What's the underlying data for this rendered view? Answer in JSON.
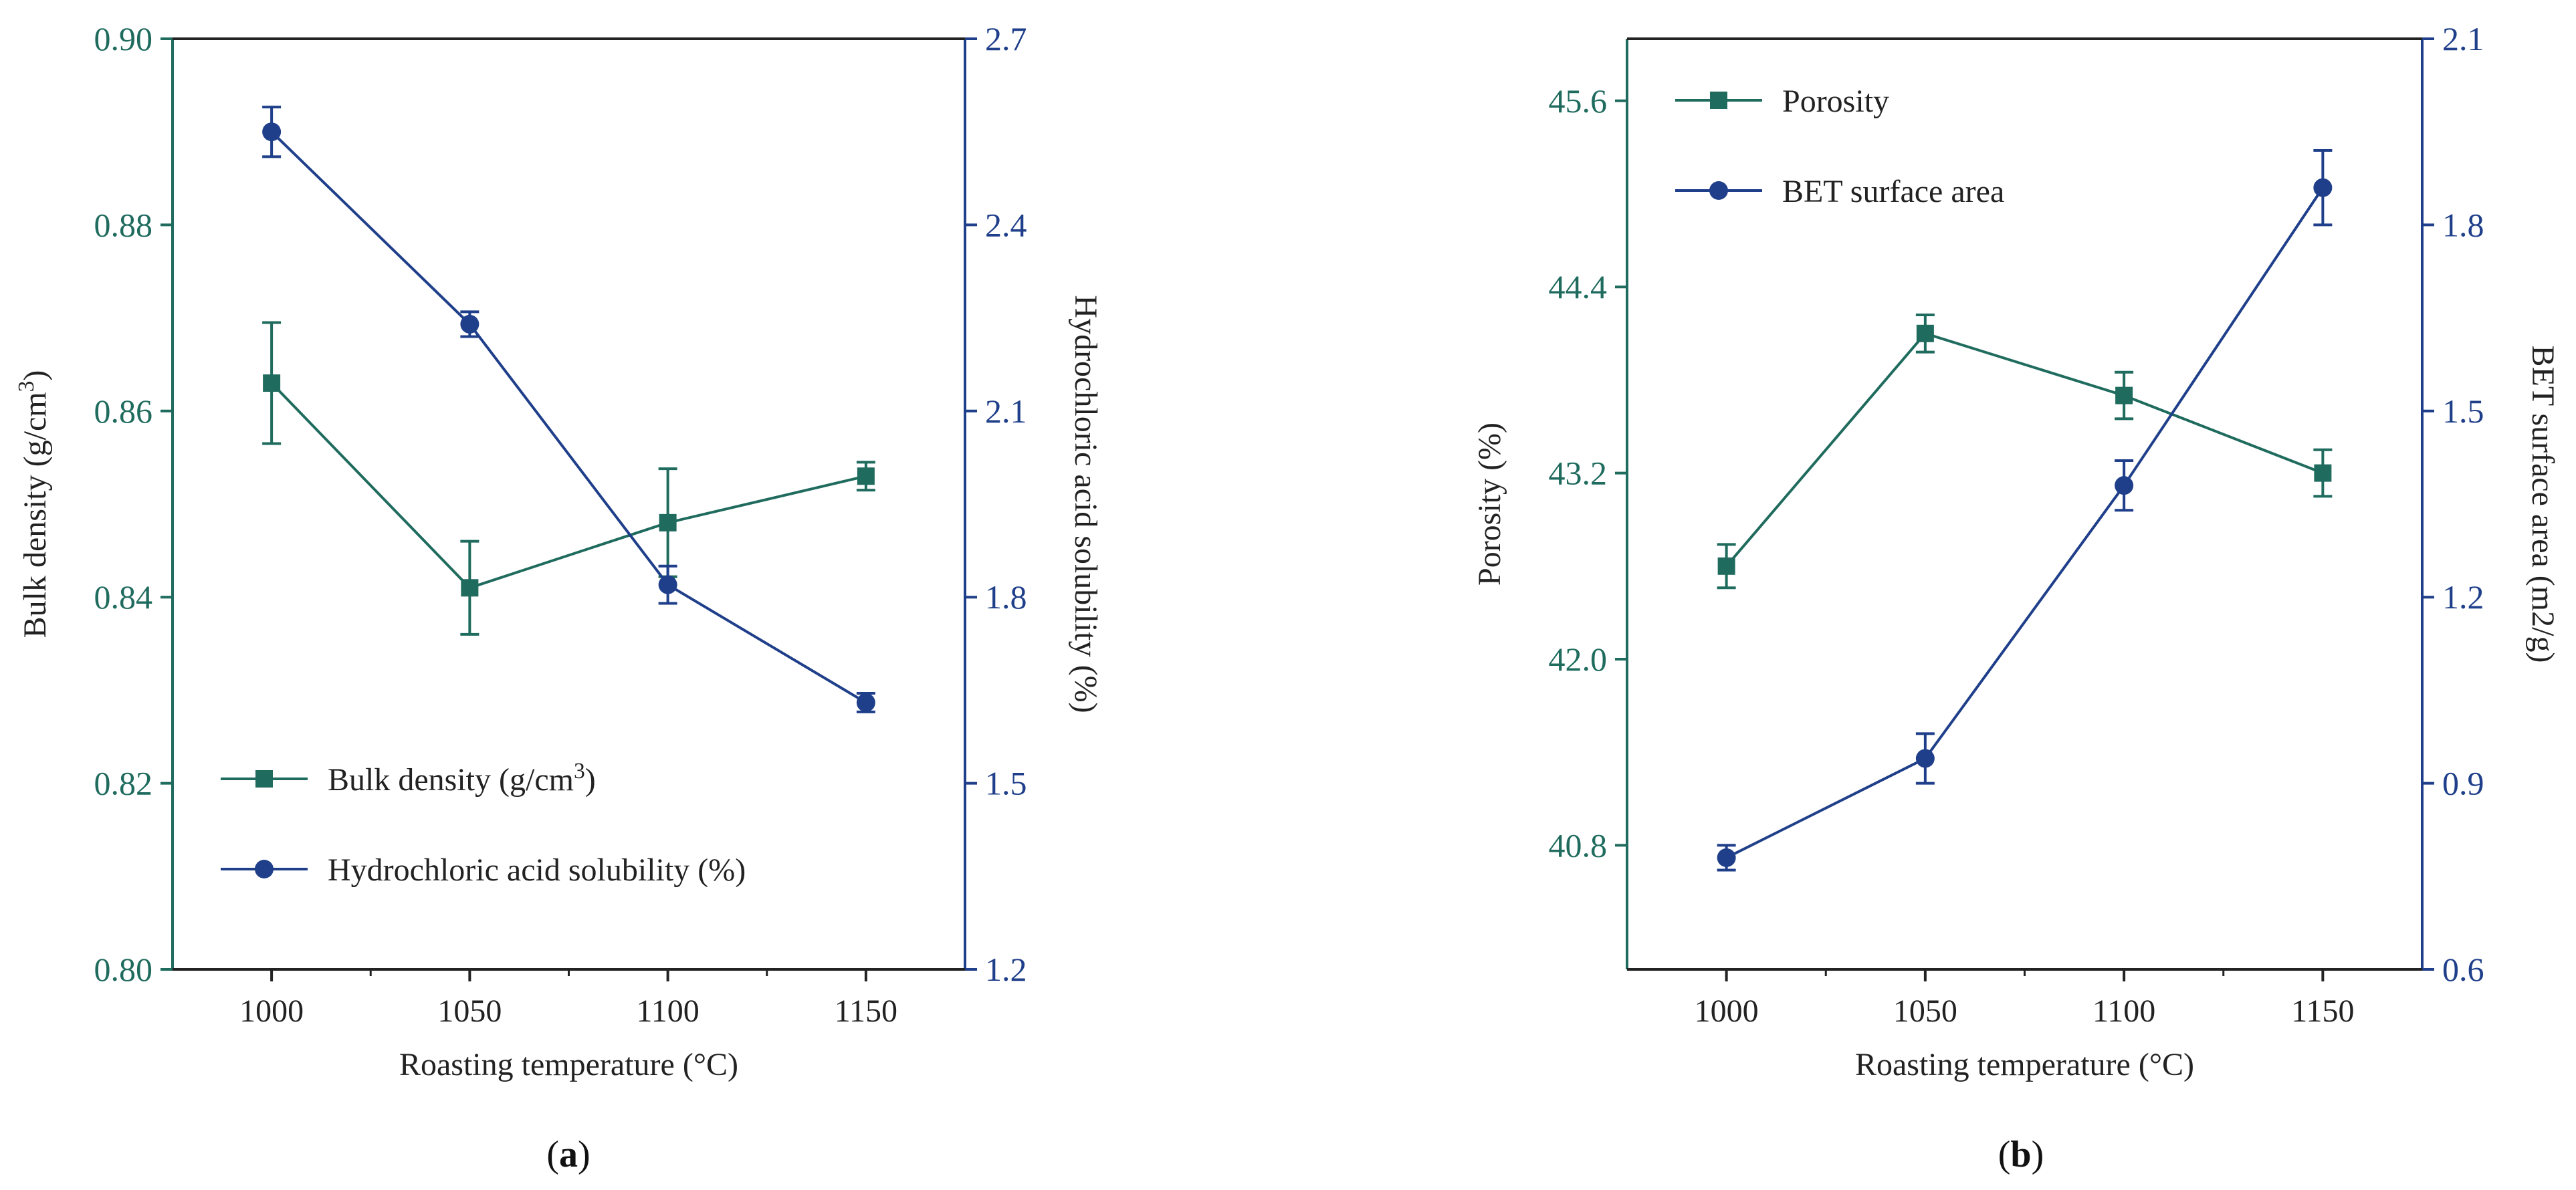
{
  "chart_data": [
    {
      "type": "line",
      "panel": "a",
      "panel_label": "(a)",
      "xlabel": "Roasting temperature (°C)",
      "x": [
        1000,
        1050,
        1100,
        1150
      ],
      "xticks": [
        "1000",
        "1050",
        "1100",
        "1150"
      ],
      "y_left": {
        "label": "Bulk density (g/cm3)",
        "ylim": [
          0.8,
          0.9
        ],
        "ticks": [
          "0.80",
          "0.82",
          "0.84",
          "0.86",
          "0.88",
          "0.90"
        ],
        "color": "#1f6b5e"
      },
      "y_right": {
        "label": "Hydrochloric acid solubility (%)",
        "ylim": [
          1.2,
          2.7
        ],
        "ticks": [
          "1.2",
          "1.5",
          "1.8",
          "2.1",
          "2.4",
          "2.7"
        ],
        "color": "#1f3f8a"
      },
      "series": [
        {
          "name": "Bulk density (g/cm3)",
          "axis": "left",
          "marker": "square",
          "color": "#1f6b5e",
          "values": [
            0.863,
            0.841,
            0.848,
            0.853
          ],
          "errors": [
            0.0065,
            0.005,
            0.0058,
            0.0015
          ]
        },
        {
          "name": "Hydrochloric acid solubility (%)",
          "axis": "right",
          "marker": "circle",
          "color": "#1f3f8a",
          "values": [
            2.55,
            2.24,
            1.82,
            1.63
          ],
          "errors": [
            0.04,
            0.02,
            0.03,
            0.015
          ]
        }
      ],
      "legend": [
        "Bulk density (g/cm3)",
        "Hydrochloric acid solubility (%)"
      ],
      "legend_position": "bottom-left"
    },
    {
      "type": "line",
      "panel": "b",
      "panel_label": "(b)",
      "xlabel": "Roasting temperature (°C)",
      "x": [
        1000,
        1050,
        1100,
        1150
      ],
      "xticks": [
        "1000",
        "1050",
        "1100",
        "1150"
      ],
      "y_left": {
        "label": "Porosity (%)",
        "ylim": [
          40.0,
          46.0
        ],
        "ticks": [
          "40.8",
          "42.0",
          "43.2",
          "44.4",
          "45.6"
        ],
        "color": "#1f6b5e"
      },
      "y_right": {
        "label": "BET surface area (m2/g)",
        "ylim": [
          0.6,
          2.1
        ],
        "ticks": [
          "0.6",
          "0.9",
          "1.2",
          "1.5",
          "1.8",
          "2.1"
        ],
        "color": "#1f3f8a"
      },
      "series": [
        {
          "name": "Porosity",
          "axis": "left",
          "marker": "square",
          "color": "#1f6b5e",
          "values": [
            42.6,
            44.1,
            43.7,
            43.2
          ],
          "errors": [
            0.14,
            0.12,
            0.15,
            0.15
          ]
        },
        {
          "name": "BET surface area",
          "axis": "right",
          "marker": "circle",
          "color": "#1f3f8a",
          "values": [
            0.78,
            0.94,
            1.38,
            1.86
          ],
          "errors": [
            0.02,
            0.04,
            0.04,
            0.06
          ]
        }
      ],
      "legend": [
        "Porosity",
        "BET surface area"
      ],
      "legend_position": "top-left"
    }
  ]
}
